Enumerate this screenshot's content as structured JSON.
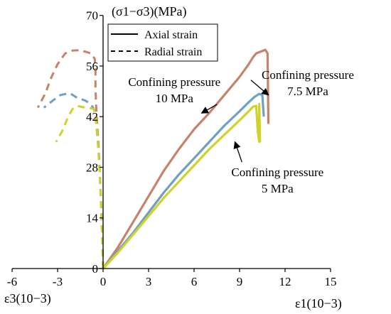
{
  "chart_data": {
    "type": "line",
    "title": "",
    "ylabel": "(σ1−σ3)(MPa)",
    "xlabel_right": "ε1(10−3)",
    "xlabel_left": "ε3(10−3)",
    "xlim": [
      -6,
      15
    ],
    "ylim": [
      0,
      70
    ],
    "x_ticks": [
      -6,
      -3,
      0,
      3,
      6,
      9,
      12,
      15
    ],
    "y_ticks": [
      0,
      14,
      28,
      42,
      56,
      70
    ],
    "legend": {
      "placement": "top-center",
      "entries": [
        {
          "label": "Axial strain",
          "dash": "solid"
        },
        {
          "label": "Radial strain",
          "dash": "dashed"
        }
      ]
    },
    "annotations": [
      {
        "id": "cp10",
        "lines": [
          "Confining pressure",
          "10 MPa"
        ],
        "x": 4.7,
        "y": 50.5,
        "points_to": [
          6.5,
          43
        ]
      },
      {
        "id": "cp75",
        "lines": [
          "Confining pressure",
          "7.5 MPa"
        ],
        "x": 13.5,
        "y": 52.5,
        "points_to": [
          10.9,
          48
        ]
      },
      {
        "id": "cp5",
        "lines": [
          "Confining pressure",
          "5 MPa"
        ],
        "x": 11.5,
        "y": 25.5,
        "points_to": [
          8.7,
          35
        ]
      }
    ],
    "series": [
      {
        "name": "10 MPa",
        "color": "#c6836c",
        "axial": [
          [
            0,
            0
          ],
          [
            1,
            6
          ],
          [
            2,
            13
          ],
          [
            3,
            20
          ],
          [
            4,
            27
          ],
          [
            5,
            33
          ],
          [
            6,
            38.5
          ],
          [
            7,
            43
          ],
          [
            8,
            48
          ],
          [
            9,
            53
          ],
          [
            9.6,
            56.5
          ],
          [
            9.9,
            58.5
          ],
          [
            10.1,
            59.5
          ],
          [
            10.4,
            60
          ],
          [
            10.7,
            60.5
          ],
          [
            10.85,
            59.5
          ],
          [
            10.9,
            40
          ]
        ],
        "radial": [
          [
            0,
            0
          ],
          [
            -0.05,
            8
          ],
          [
            -0.15,
            20
          ],
          [
            -0.3,
            34
          ],
          [
            -0.45,
            44
          ],
          [
            -0.5,
            50
          ],
          [
            -0.5,
            55
          ],
          [
            -0.55,
            58
          ],
          [
            -0.8,
            59.5
          ],
          [
            -1.2,
            60
          ],
          [
            -1.5,
            60.4
          ],
          [
            -2.0,
            60.3
          ],
          [
            -2.5,
            59.5
          ],
          [
            -3.0,
            56.5
          ],
          [
            -3.4,
            53
          ],
          [
            -3.8,
            48.5
          ],
          [
            -4.3,
            44.5
          ]
        ]
      },
      {
        "name": "7.5 MPa",
        "color": "#6fa0c2",
        "axial": [
          [
            0,
            0
          ],
          [
            1,
            5
          ],
          [
            2,
            10
          ],
          [
            3,
            15.5
          ],
          [
            4,
            21
          ],
          [
            5,
            26
          ],
          [
            6,
            30.5
          ],
          [
            7,
            35
          ],
          [
            8,
            39.5
          ],
          [
            9,
            43.5
          ],
          [
            9.6,
            46
          ],
          [
            10.0,
            47.5
          ],
          [
            10.3,
            48.3
          ],
          [
            10.5,
            48
          ],
          [
            10.6,
            42
          ]
        ],
        "radial": [
          [
            0,
            0
          ],
          [
            -0.05,
            8
          ],
          [
            -0.15,
            20
          ],
          [
            -0.3,
            33
          ],
          [
            -0.45,
            40
          ],
          [
            -0.6,
            44
          ],
          [
            -0.8,
            45.5
          ],
          [
            -1.2,
            46.5
          ],
          [
            -1.7,
            47.2
          ],
          [
            -2.2,
            48.5
          ],
          [
            -2.8,
            48
          ],
          [
            -3.3,
            46.5
          ],
          [
            -3.9,
            44.5
          ]
        ]
      },
      {
        "name": "5 MPa",
        "color": "#d0d22c",
        "axial": [
          [
            0,
            0
          ],
          [
            1,
            4.5
          ],
          [
            2,
            9.5
          ],
          [
            3,
            14.5
          ],
          [
            4,
            19.5
          ],
          [
            5,
            24
          ],
          [
            6,
            28.5
          ],
          [
            7,
            33
          ],
          [
            8,
            37
          ],
          [
            9,
            41
          ],
          [
            9.6,
            43.5
          ],
          [
            9.9,
            44.8
          ],
          [
            10.1,
            45
          ],
          [
            10.2,
            38
          ],
          [
            10.3,
            35
          ],
          [
            10.3,
            45.5
          ],
          [
            10.35,
            35
          ]
        ],
        "radial": [
          [
            0,
            0
          ],
          [
            -0.05,
            8
          ],
          [
            -0.15,
            20
          ],
          [
            -0.3,
            32
          ],
          [
            -0.4,
            38
          ],
          [
            -0.5,
            42
          ],
          [
            -0.6,
            44
          ],
          [
            -0.9,
            44.5
          ],
          [
            -1.3,
            44.6
          ],
          [
            -1.7,
            45
          ],
          [
            -2.0,
            44.2
          ],
          [
            -2.3,
            42
          ],
          [
            -2.7,
            38
          ],
          [
            -3.1,
            35
          ]
        ]
      }
    ]
  }
}
